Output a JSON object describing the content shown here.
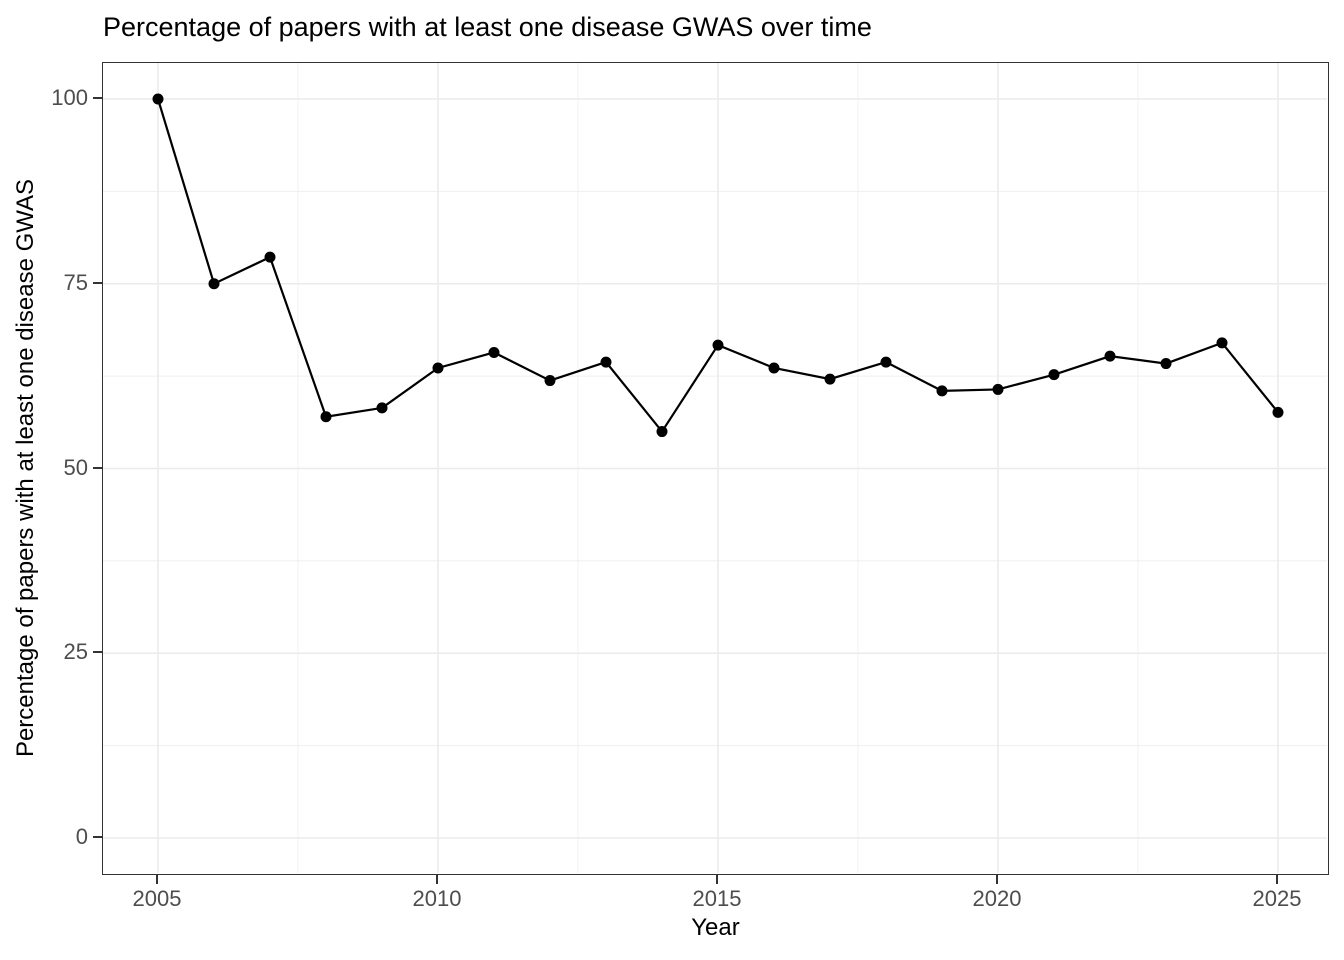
{
  "title": "Percentage of papers with at least one disease GWAS over time",
  "chart_data": {
    "type": "line",
    "title": "Percentage of papers with at least one disease GWAS over time",
    "xlabel": "Year",
    "ylabel": "Percentage of papers with at least one disease GWAS",
    "x": [
      2005,
      2006,
      2007,
      2008,
      2009,
      2010,
      2011,
      2012,
      2013,
      2014,
      2015,
      2016,
      2017,
      2018,
      2019,
      2020,
      2021,
      2022,
      2023,
      2024,
      2025
    ],
    "values": [
      100,
      75,
      78.6,
      57,
      58.2,
      63.6,
      65.7,
      61.9,
      64.4,
      55,
      66.7,
      63.6,
      62.1,
      64.4,
      60.5,
      60.7,
      62.7,
      65.2,
      64.2,
      67,
      57.6
    ],
    "x_ticks": [
      2005,
      2010,
      2015,
      2020,
      2025
    ],
    "x_tick_labels": [
      "2005",
      "2010",
      "2015",
      "2020",
      "2025"
    ],
    "y_ticks": [
      0,
      25,
      50,
      75,
      100
    ],
    "y_tick_labels": [
      "0",
      "25",
      "50",
      "75",
      "100"
    ],
    "x_minor_ticks": [
      2007.5,
      2012.5,
      2017.5,
      2022.5
    ],
    "y_minor_ticks": [
      12.5,
      37.5,
      62.5,
      87.5
    ],
    "xlim": [
      2004.02,
      2025.93
    ],
    "ylim": [
      -5,
      105
    ],
    "grid": true,
    "legend": "none",
    "colors": {
      "line": "#000000",
      "point": "#000000",
      "grid_major": "#ebebeb",
      "grid_minor": "#efefef",
      "axis_text": "#4d4d4d",
      "tick_mark": "#333333",
      "panel_border": "#333333",
      "background": "#ffffff"
    }
  }
}
